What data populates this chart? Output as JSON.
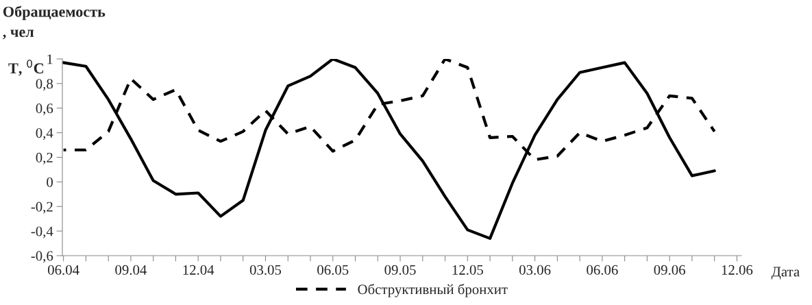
{
  "chart_data": {
    "type": "line",
    "ylabel": "Обращаемость\n, чел",
    "xlabel": "Дата",
    "annotations": [
      "Т, $^{0}$С"
    ],
    "categories": [
      "06.04",
      null,
      null,
      "09.04",
      null,
      null,
      "12.04",
      null,
      null,
      "03.05",
      null,
      null,
      "06.05",
      null,
      null,
      "09.05",
      null,
      null,
      "12.05",
      null,
      null,
      "03.06",
      null,
      null,
      "06.06",
      null,
      null,
      "09.06",
      null,
      null,
      "12.06"
    ],
    "ylim": [
      -0.6,
      1
    ],
    "yticks": [
      {
        "value": -0.6,
        "label": "-0,6"
      },
      {
        "value": -0.4,
        "label": "-0,4"
      },
      {
        "value": -0.2,
        "label": "-0,2"
      },
      0,
      {
        "value": 0.2,
        "label": "0,2"
      },
      {
        "value": 0.4,
        "label": "0,4"
      },
      {
        "value": 0.6,
        "label": "0,6"
      },
      {
        "value": 0.8,
        "label": "0,8"
      },
      1
    ],
    "grid": false,
    "legend": "bottom",
    "marker": "none",
    "series": [
      {
        "color": "#000000",
        "line_style": "solid",
        "values": [
          0.97,
          0.94,
          0.67,
          0.35,
          0.01,
          -0.1,
          -0.09,
          -0.28,
          -0.15,
          0.42,
          0.78,
          0.86,
          1.0,
          0.93,
          0.72,
          0.39,
          0.17,
          -0.12,
          -0.39,
          -0.46,
          -0.01,
          0.38,
          0.67,
          0.89,
          0.93,
          0.97,
          0.72,
          0.36,
          0.05,
          0.09,
          null
        ]
      },
      {
        "name": "Обструктивный бронхит",
        "color": "#000000",
        "line_style": "dashed",
        "values": [
          0.26,
          0.26,
          0.41,
          0.84,
          0.67,
          0.75,
          0.42,
          0.33,
          0.41,
          0.58,
          0.39,
          0.45,
          0.25,
          0.34,
          0.63,
          0.66,
          0.7,
          1.0,
          0.93,
          0.36,
          0.37,
          0.18,
          0.21,
          0.4,
          0.33,
          0.38,
          0.44,
          0.7,
          0.68,
          0.41,
          null
        ]
      }
    ]
  }
}
